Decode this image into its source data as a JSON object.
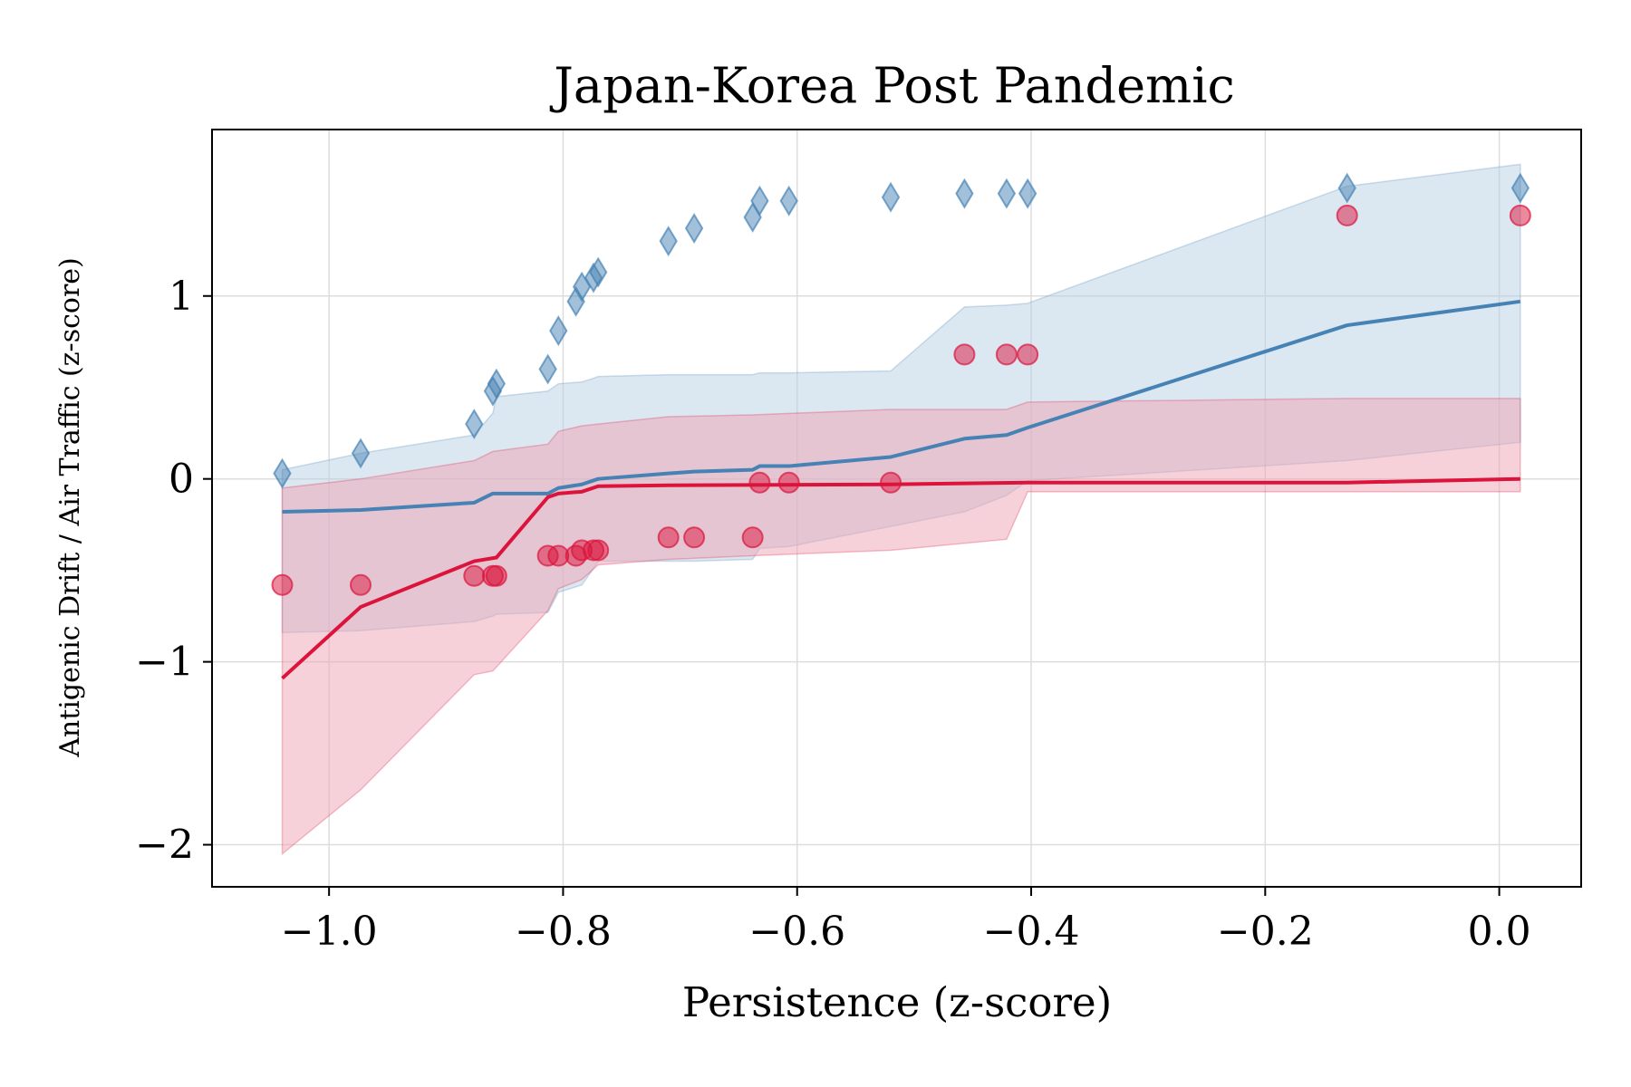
{
  "chart_data": {
    "type": "line",
    "title": "Japan-Korea Post Pandemic",
    "xlabel": "Persistence (z-score)",
    "ylabel": "Antigenic Drift / Air Traffic (z-score)",
    "xlim": [
      -1.1,
      0.07
    ],
    "ylim": [
      -2.23,
      1.91
    ],
    "xticks": [
      {
        "value": -1.0,
        "label": "−1.0"
      },
      {
        "value": -0.8,
        "label": "−0.8"
      },
      {
        "value": -0.6,
        "label": "−0.6"
      },
      {
        "value": -0.4,
        "label": "−0.4"
      },
      {
        "value": -0.2,
        "label": "−0.2"
      },
      {
        "value": 0.0,
        "label": "0.0"
      }
    ],
    "yticks": [
      {
        "value": 1,
        "label": "1"
      },
      {
        "value": 0,
        "label": "0"
      },
      {
        "value": -1,
        "label": "−1"
      },
      {
        "value": -2,
        "label": "−2"
      }
    ],
    "grid": true,
    "colors": {
      "blue": "#4682b4",
      "red": "#dc143c",
      "blue_band": "#b8cfe3",
      "red_band": "#f0a3b3"
    },
    "series": [
      {
        "color": "#4682b4",
        "marker": "diamond",
        "points": [
          [
            -1.04,
            0.03
          ],
          [
            -0.973,
            0.14
          ],
          [
            -0.876,
            0.3
          ],
          [
            -0.86,
            0.48
          ],
          [
            -0.857,
            0.52
          ],
          [
            -0.813,
            0.6
          ],
          [
            -0.804,
            0.81
          ],
          [
            -0.789,
            0.97
          ],
          [
            -0.784,
            1.05
          ],
          [
            -0.774,
            1.1
          ],
          [
            -0.77,
            1.13
          ],
          [
            -0.71,
            1.3
          ],
          [
            -0.688,
            1.37
          ],
          [
            -0.638,
            1.43
          ],
          [
            -0.632,
            1.52
          ],
          [
            -0.607,
            1.52
          ],
          [
            -0.52,
            1.54
          ],
          [
            -0.457,
            1.56
          ],
          [
            -0.421,
            1.56
          ],
          [
            -0.403,
            1.56
          ],
          [
            -0.13,
            1.59
          ],
          [
            0.018,
            1.59
          ]
        ],
        "line": [
          [
            -1.04,
            -0.18
          ],
          [
            -0.973,
            -0.17
          ],
          [
            -0.876,
            -0.13
          ],
          [
            -0.86,
            -0.08
          ],
          [
            -0.813,
            -0.08
          ],
          [
            -0.804,
            -0.05
          ],
          [
            -0.784,
            -0.03
          ],
          [
            -0.77,
            0.0
          ],
          [
            -0.71,
            0.03
          ],
          [
            -0.688,
            0.04
          ],
          [
            -0.638,
            0.05
          ],
          [
            -0.632,
            0.07
          ],
          [
            -0.607,
            0.07
          ],
          [
            -0.52,
            0.12
          ],
          [
            -0.457,
            0.22
          ],
          [
            -0.421,
            0.24
          ],
          [
            -0.403,
            0.28
          ],
          [
            -0.13,
            0.84
          ],
          [
            0.018,
            0.97
          ]
        ],
        "band": [
          [
            -1.04,
            0.05,
            -0.84
          ],
          [
            -0.973,
            0.14,
            -0.83
          ],
          [
            -0.876,
            0.24,
            -0.78
          ],
          [
            -0.86,
            0.36,
            -0.75
          ],
          [
            -0.857,
            0.45,
            -0.74
          ],
          [
            -0.813,
            0.48,
            -0.73
          ],
          [
            -0.804,
            0.52,
            -0.62
          ],
          [
            -0.784,
            0.53,
            -0.58
          ],
          [
            -0.774,
            0.55,
            -0.49
          ],
          [
            -0.77,
            0.56,
            -0.45
          ],
          [
            -0.71,
            0.57,
            -0.45
          ],
          [
            -0.688,
            0.57,
            -0.45
          ],
          [
            -0.638,
            0.57,
            -0.44
          ],
          [
            -0.632,
            0.58,
            -0.38
          ],
          [
            -0.607,
            0.58,
            -0.37
          ],
          [
            -0.52,
            0.59,
            -0.26
          ],
          [
            -0.457,
            0.94,
            -0.18
          ],
          [
            -0.421,
            0.95,
            -0.09
          ],
          [
            -0.403,
            0.96,
            -0.01
          ],
          [
            -0.13,
            1.6,
            0.1
          ],
          [
            0.018,
            1.72,
            0.2
          ]
        ]
      },
      {
        "color": "#dc143c",
        "marker": "circle",
        "points": [
          [
            -1.04,
            -0.58
          ],
          [
            -0.973,
            -0.58
          ],
          [
            -0.876,
            -0.53
          ],
          [
            -0.86,
            -0.53
          ],
          [
            -0.857,
            -0.53
          ],
          [
            -0.813,
            -0.42
          ],
          [
            -0.804,
            -0.42
          ],
          [
            -0.789,
            -0.42
          ],
          [
            -0.784,
            -0.39
          ],
          [
            -0.774,
            -0.39
          ],
          [
            -0.77,
            -0.39
          ],
          [
            -0.71,
            -0.32
          ],
          [
            -0.688,
            -0.32
          ],
          [
            -0.638,
            -0.32
          ],
          [
            -0.632,
            -0.02
          ],
          [
            -0.607,
            -0.02
          ],
          [
            -0.52,
            -0.02
          ],
          [
            -0.457,
            0.68
          ],
          [
            -0.421,
            0.68
          ],
          [
            -0.403,
            0.68
          ],
          [
            -0.13,
            1.44
          ],
          [
            0.018,
            1.44
          ]
        ],
        "line": [
          [
            -1.04,
            -1.09
          ],
          [
            -0.973,
            -0.7
          ],
          [
            -0.876,
            -0.45
          ],
          [
            -0.857,
            -0.43
          ],
          [
            -0.813,
            -0.1
          ],
          [
            -0.804,
            -0.08
          ],
          [
            -0.784,
            -0.07
          ],
          [
            -0.77,
            -0.04
          ],
          [
            -0.71,
            -0.035
          ],
          [
            -0.52,
            -0.03
          ],
          [
            -0.403,
            -0.02
          ],
          [
            -0.13,
            -0.02
          ],
          [
            0.018,
            0.0
          ]
        ],
        "band": [
          [
            -1.04,
            -0.05,
            -2.05
          ],
          [
            -0.973,
            0.0,
            -1.7
          ],
          [
            -0.876,
            0.1,
            -1.07
          ],
          [
            -0.86,
            0.15,
            -1.05
          ],
          [
            -0.813,
            0.19,
            -0.72
          ],
          [
            -0.804,
            0.26,
            -0.6
          ],
          [
            -0.784,
            0.29,
            -0.55
          ],
          [
            -0.77,
            0.3,
            -0.47
          ],
          [
            -0.71,
            0.34,
            -0.44
          ],
          [
            -0.638,
            0.35,
            -0.42
          ],
          [
            -0.52,
            0.38,
            -0.39
          ],
          [
            -0.421,
            0.38,
            -0.33
          ],
          [
            -0.403,
            0.42,
            -0.07
          ],
          [
            -0.13,
            0.44,
            -0.07
          ],
          [
            0.018,
            0.44,
            -0.07
          ]
        ]
      }
    ]
  }
}
